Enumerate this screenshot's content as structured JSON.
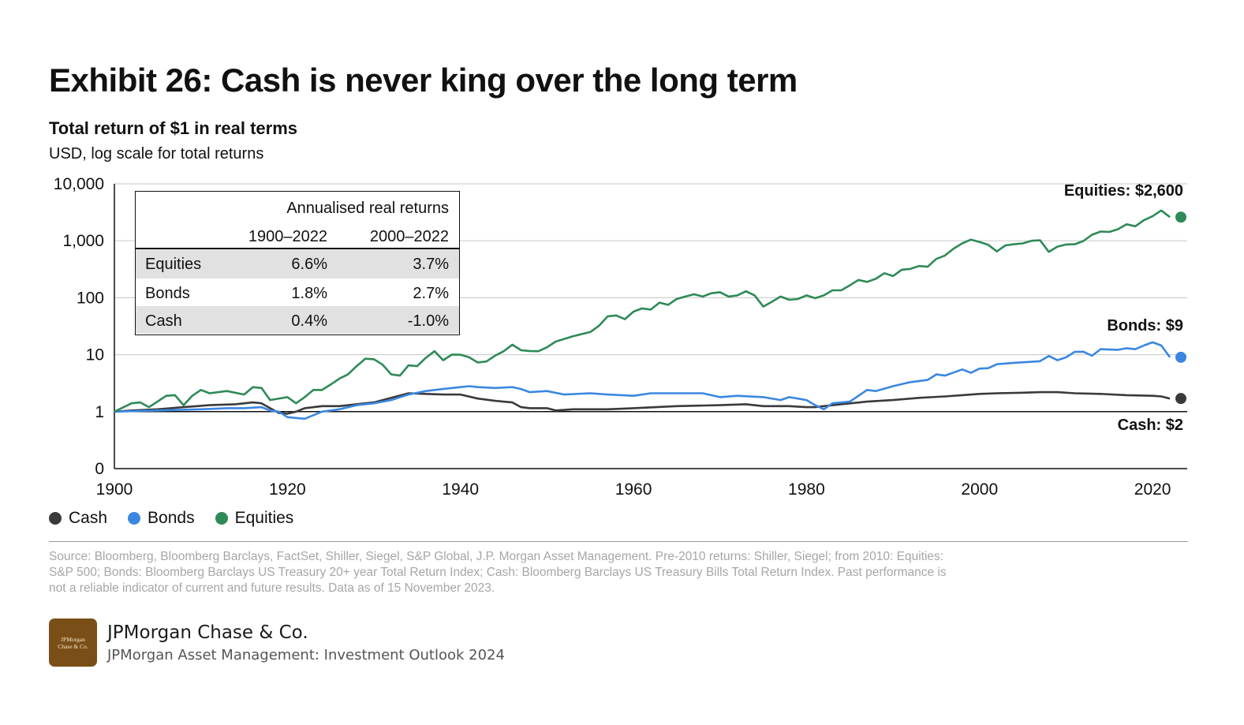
{
  "header": {
    "title": "Exhibit 26: Cash is never king over the long term",
    "subtitle": "Total return of $1 in real terms",
    "units": "USD, log scale for total returns"
  },
  "returns_table": {
    "heading": "Annualised real returns",
    "col1": "1900–2022",
    "col2": "2000–2022",
    "rows": [
      {
        "name": "Equities",
        "v1": "6.6%",
        "v2": "3.7%"
      },
      {
        "name": "Bonds",
        "v1": "1.8%",
        "v2": "2.7%"
      },
      {
        "name": "Cash",
        "v1": "0.4%",
        "v2": "-1.0%"
      }
    ]
  },
  "legend": [
    {
      "label": "Cash",
      "color": "#3a3a3c"
    },
    {
      "label": "Bonds",
      "color": "#3b87e0"
    },
    {
      "label": "Equities",
      "color": "#2e8a57"
    }
  ],
  "chart_data": {
    "type": "line",
    "title": "Total return of $1 in real terms",
    "ylabel": "USD, log scale for total returns",
    "y_scale": "log",
    "xlim": [
      1900,
      2024
    ],
    "ylim": [
      0.1,
      10000
    ],
    "x_ticks": [
      1900,
      1920,
      1940,
      1960,
      1980,
      2000,
      2020
    ],
    "y_ticks": [
      {
        "value": 0.1,
        "label": "0"
      },
      {
        "value": 1,
        "label": "1"
      },
      {
        "value": 10,
        "label": "10"
      },
      {
        "value": 100,
        "label": "100"
      },
      {
        "value": 1000,
        "label": "1,000"
      },
      {
        "value": 10000,
        "label": "10,000"
      }
    ],
    "grid": true,
    "series": [
      {
        "name": "Equities",
        "color": "#2e8a57",
        "end_label": "Equities: $2,600",
        "end_value": 2600,
        "points": [
          [
            1900,
            1
          ],
          [
            1902,
            1.4
          ],
          [
            1903,
            1.45
          ],
          [
            1904,
            1.2
          ],
          [
            1906,
            1.9
          ],
          [
            1907,
            1.95
          ],
          [
            1908,
            1.3
          ],
          [
            1909,
            1.9
          ],
          [
            1910,
            2.4
          ],
          [
            1911,
            2.1
          ],
          [
            1913,
            2.3
          ],
          [
            1915,
            2.0
          ],
          [
            1916,
            2.7
          ],
          [
            1917,
            2.6
          ],
          [
            1918,
            1.6
          ],
          [
            1920,
            1.8
          ],
          [
            1921,
            1.4
          ],
          [
            1922,
            1.8
          ],
          [
            1923,
            2.4
          ],
          [
            1924,
            2.4
          ],
          [
            1925,
            3.0
          ],
          [
            1926,
            3.8
          ],
          [
            1927,
            4.5
          ],
          [
            1928,
            6.3
          ],
          [
            1929,
            8.5
          ],
          [
            1930,
            8.3
          ],
          [
            1931,
            6.7
          ],
          [
            1932,
            4.5
          ],
          [
            1933,
            4.3
          ],
          [
            1934,
            6.5
          ],
          [
            1935,
            6.3
          ],
          [
            1936,
            8.8
          ],
          [
            1937,
            11.5
          ],
          [
            1938,
            8.0
          ],
          [
            1939,
            10.0
          ],
          [
            1940,
            10.0
          ],
          [
            1941,
            9.0
          ],
          [
            1942,
            7.3
          ],
          [
            1943,
            7.6
          ],
          [
            1944,
            9.6
          ],
          [
            1945,
            11.5
          ],
          [
            1946,
            15.0
          ],
          [
            1947,
            12.0
          ],
          [
            1948,
            11.6
          ],
          [
            1949,
            11.5
          ],
          [
            1950,
            13.5
          ],
          [
            1951,
            17
          ],
          [
            1953,
            21
          ],
          [
            1954,
            23
          ],
          [
            1955,
            25
          ],
          [
            1956,
            32
          ],
          [
            1957,
            47
          ],
          [
            1958,
            49
          ],
          [
            1959,
            42
          ],
          [
            1960,
            57
          ],
          [
            1961,
            65
          ],
          [
            1962,
            62
          ],
          [
            1963,
            82
          ],
          [
            1964,
            75
          ],
          [
            1965,
            95
          ],
          [
            1966,
            105
          ],
          [
            1967,
            115
          ],
          [
            1968,
            105
          ],
          [
            1969,
            120
          ],
          [
            1970,
            125
          ],
          [
            1971,
            105
          ],
          [
            1972,
            110
          ],
          [
            1973,
            130
          ],
          [
            1974,
            110
          ],
          [
            1975,
            70
          ],
          [
            1976,
            85
          ],
          [
            1977,
            105
          ],
          [
            1978,
            92
          ],
          [
            1979,
            95
          ],
          [
            1980,
            110
          ],
          [
            1981,
            98
          ],
          [
            1982,
            110
          ],
          [
            1983,
            135
          ],
          [
            1984,
            135
          ],
          [
            1985,
            165
          ],
          [
            1986,
            205
          ],
          [
            1987,
            190
          ],
          [
            1988,
            215
          ],
          [
            1989,
            270
          ],
          [
            1990,
            240
          ],
          [
            1991,
            310
          ],
          [
            1992,
            320
          ],
          [
            1993,
            360
          ],
          [
            1994,
            350
          ],
          [
            1995,
            480
          ],
          [
            1996,
            550
          ],
          [
            1997,
            730
          ],
          [
            1998,
            900
          ],
          [
            1999,
            1050
          ],
          [
            2000,
            950
          ],
          [
            2001,
            850
          ],
          [
            2002,
            650
          ],
          [
            2003,
            830
          ],
          [
            2004,
            870
          ],
          [
            2005,
            900
          ],
          [
            2006,
            1000
          ],
          [
            2007,
            1020
          ],
          [
            2008,
            640
          ],
          [
            2009,
            790
          ],
          [
            2010,
            860
          ],
          [
            2011,
            870
          ],
          [
            2012,
            990
          ],
          [
            2013,
            1280
          ],
          [
            2014,
            1450
          ],
          [
            2015,
            1430
          ],
          [
            2016,
            1600
          ],
          [
            2017,
            1950
          ],
          [
            2018,
            1800
          ],
          [
            2019,
            2300
          ],
          [
            2020,
            2700
          ],
          [
            2021,
            3400
          ],
          [
            2022,
            2600
          ]
        ]
      },
      {
        "name": "Bonds",
        "color": "#3b87e0",
        "end_label": "Bonds: $9",
        "end_value": 9,
        "points": [
          [
            1900,
            1
          ],
          [
            1905,
            1.05
          ],
          [
            1910,
            1.1
          ],
          [
            1913,
            1.15
          ],
          [
            1915,
            1.15
          ],
          [
            1917,
            1.2
          ],
          [
            1918,
            1.05
          ],
          [
            1919,
            1.0
          ],
          [
            1920,
            0.8
          ],
          [
            1922,
            0.75
          ],
          [
            1924,
            1.0
          ],
          [
            1926,
            1.1
          ],
          [
            1928,
            1.3
          ],
          [
            1930,
            1.4
          ],
          [
            1932,
            1.6
          ],
          [
            1934,
            2.0
          ],
          [
            1936,
            2.3
          ],
          [
            1938,
            2.5
          ],
          [
            1940,
            2.7
          ],
          [
            1941,
            2.8
          ],
          [
            1942,
            2.7
          ],
          [
            1944,
            2.6
          ],
          [
            1946,
            2.7
          ],
          [
            1947,
            2.5
          ],
          [
            1948,
            2.2
          ],
          [
            1950,
            2.3
          ],
          [
            1952,
            2.0
          ],
          [
            1955,
            2.1
          ],
          [
            1957,
            2.0
          ],
          [
            1960,
            1.9
          ],
          [
            1962,
            2.1
          ],
          [
            1965,
            2.1
          ],
          [
            1968,
            2.1
          ],
          [
            1970,
            1.8
          ],
          [
            1972,
            1.9
          ],
          [
            1975,
            1.8
          ],
          [
            1977,
            1.6
          ],
          [
            1978,
            1.8
          ],
          [
            1980,
            1.6
          ],
          [
            1981,
            1.3
          ],
          [
            1982,
            1.1
          ],
          [
            1983,
            1.4
          ],
          [
            1985,
            1.5
          ],
          [
            1987,
            2.4
          ],
          [
            1988,
            2.3
          ],
          [
            1990,
            2.8
          ],
          [
            1992,
            3.3
          ],
          [
            1994,
            3.6
          ],
          [
            1995,
            4.5
          ],
          [
            1996,
            4.3
          ],
          [
            1998,
            5.5
          ],
          [
            1999,
            4.8
          ],
          [
            2000,
            5.7
          ],
          [
            2001,
            5.8
          ],
          [
            2002,
            6.8
          ],
          [
            2004,
            7.2
          ],
          [
            2006,
            7.5
          ],
          [
            2007,
            7.7
          ],
          [
            2008,
            9.5
          ],
          [
            2009,
            8.0
          ],
          [
            2010,
            9.0
          ],
          [
            2011,
            11.2
          ],
          [
            2012,
            11.3
          ],
          [
            2013,
            9.6
          ],
          [
            2014,
            12.5
          ],
          [
            2015,
            12.3
          ],
          [
            2016,
            12.2
          ],
          [
            2017,
            13.0
          ],
          [
            2018,
            12.5
          ],
          [
            2019,
            14.5
          ],
          [
            2020,
            16.5
          ],
          [
            2021,
            14.5
          ],
          [
            2022,
            9
          ]
        ]
      },
      {
        "name": "Cash",
        "color": "#3a3a3c",
        "end_label": "Cash: $2",
        "end_value": 1.7,
        "points": [
          [
            1900,
            1
          ],
          [
            1902,
            1.05
          ],
          [
            1905,
            1.1
          ],
          [
            1908,
            1.2
          ],
          [
            1911,
            1.3
          ],
          [
            1914,
            1.35
          ],
          [
            1916,
            1.45
          ],
          [
            1917,
            1.4
          ],
          [
            1918,
            1.15
          ],
          [
            1919,
            0.95
          ],
          [
            1920,
            0.92
          ],
          [
            1921,
            1.0
          ],
          [
            1922,
            1.15
          ],
          [
            1924,
            1.25
          ],
          [
            1926,
            1.25
          ],
          [
            1928,
            1.35
          ],
          [
            1930,
            1.45
          ],
          [
            1932,
            1.75
          ],
          [
            1934,
            2.1
          ],
          [
            1936,
            2.05
          ],
          [
            1938,
            2.0
          ],
          [
            1940,
            2.0
          ],
          [
            1942,
            1.7
          ],
          [
            1944,
            1.55
          ],
          [
            1946,
            1.45
          ],
          [
            1947,
            1.2
          ],
          [
            1948,
            1.15
          ],
          [
            1950,
            1.15
          ],
          [
            1951,
            1.05
          ],
          [
            1953,
            1.1
          ],
          [
            1955,
            1.1
          ],
          [
            1957,
            1.1
          ],
          [
            1960,
            1.15
          ],
          [
            1965,
            1.25
          ],
          [
            1970,
            1.3
          ],
          [
            1973,
            1.35
          ],
          [
            1975,
            1.25
          ],
          [
            1978,
            1.25
          ],
          [
            1980,
            1.2
          ],
          [
            1981,
            1.2
          ],
          [
            1982,
            1.25
          ],
          [
            1984,
            1.35
          ],
          [
            1987,
            1.5
          ],
          [
            1990,
            1.6
          ],
          [
            1993,
            1.75
          ],
          [
            1996,
            1.85
          ],
          [
            1998,
            1.95
          ],
          [
            2000,
            2.05
          ],
          [
            2002,
            2.1
          ],
          [
            2005,
            2.15
          ],
          [
            2007,
            2.2
          ],
          [
            2009,
            2.2
          ],
          [
            2011,
            2.1
          ],
          [
            2014,
            2.05
          ],
          [
            2017,
            1.95
          ],
          [
            2020,
            1.9
          ],
          [
            2021,
            1.85
          ],
          [
            2022,
            1.7
          ]
        ]
      }
    ]
  },
  "footer": {
    "source": "Source: Bloomberg, Bloomberg Barclays, FactSet, Shiller, Siegel, S&P Global, J.P. Morgan Asset Management. Pre-2010 returns: Shiller, Siegel; from 2010: Equities: S&P 500; Bonds: Bloomberg Barclays US Treasury 20+ year Total Return Index; Cash: Bloomberg Barclays US Treasury Bills Total Return Index. Past performance is not a reliable indicator of current and future results. Data as of 15 November 2023.",
    "logo_text": "JPMorgan Chase & Co.",
    "brand": "JPMorgan Chase & Co.",
    "brand_sub": "JPMorgan Asset Management: Investment Outlook 2024"
  }
}
